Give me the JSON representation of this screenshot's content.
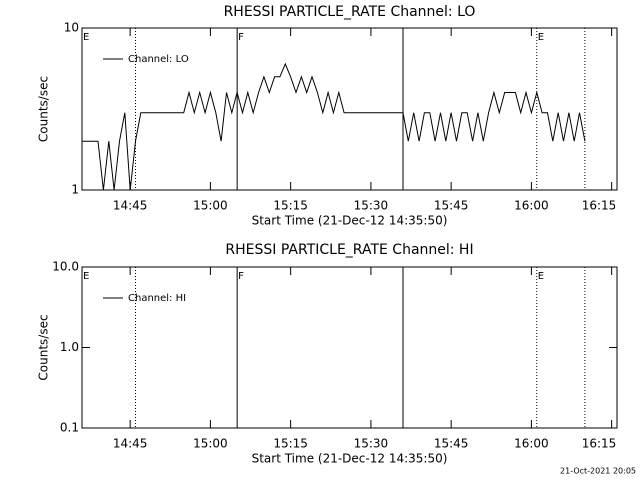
{
  "chart_data": [
    {
      "type": "line",
      "title": "RHESSI PARTICLE_RATE Channel: LO",
      "ylabel": "Counts/sec",
      "xlabel": "Start Time (21-Dec-12 14:35:50)",
      "yscale": "log",
      "ylim": [
        1,
        10
      ],
      "yticks": [
        1,
        10
      ],
      "xlim": [
        "14:36",
        "16:16"
      ],
      "xticks": [
        "14:45",
        "15:00",
        "15:15",
        "15:30",
        "15:45",
        "16:00",
        "16:15"
      ],
      "x": [
        "14:36",
        "14:37",
        "14:38",
        "14:39",
        "14:40",
        "14:41",
        "14:42",
        "14:43",
        "14:44",
        "14:45",
        "14:46",
        "14:47",
        "14:48",
        "14:49",
        "14:50",
        "14:51",
        "14:52",
        "14:53",
        "14:54",
        "14:55",
        "14:56",
        "14:57",
        "14:58",
        "14:59",
        "15:00",
        "15:01",
        "15:02",
        "15:03",
        "15:04",
        "15:05",
        "15:06",
        "15:07",
        "15:08",
        "15:09",
        "15:10",
        "15:11",
        "15:12",
        "15:13",
        "15:14",
        "15:15",
        "15:16",
        "15:17",
        "15:18",
        "15:19",
        "15:20",
        "15:21",
        "15:22",
        "15:23",
        "15:24",
        "15:25",
        "15:26",
        "15:27",
        "15:28",
        "15:29",
        "15:30",
        "15:31",
        "15:32",
        "15:33",
        "15:34",
        "15:35",
        "15:36",
        "15:37",
        "15:38",
        "15:39",
        "15:40",
        "15:41",
        "15:42",
        "15:43",
        "15:44",
        "15:45",
        "15:46",
        "15:47",
        "15:48",
        "15:49",
        "15:50",
        "15:51",
        "15:52",
        "15:53",
        "15:54",
        "15:55",
        "15:56",
        "15:57",
        "15:58",
        "15:59",
        "16:00",
        "16:01",
        "16:02",
        "16:03",
        "16:04",
        "16:05",
        "16:06",
        "16:07",
        "16:08",
        "16:09",
        "16:10"
      ],
      "series": [
        {
          "name": "Channel: LO",
          "color": "#000000",
          "values": [
            2,
            2,
            2,
            2,
            1,
            2,
            1,
            2,
            3,
            1,
            2,
            3,
            3,
            3,
            3,
            3,
            3,
            3,
            3,
            3,
            4,
            3,
            4,
            3,
            4,
            3,
            2,
            4,
            3,
            4,
            3,
            4,
            3,
            4,
            5,
            4,
            5,
            5,
            6,
            5,
            4,
            5,
            4,
            5,
            4,
            3,
            4,
            3,
            4,
            3,
            3,
            3,
            3,
            3,
            3,
            3,
            3,
            3,
            3,
            3,
            3,
            2,
            3,
            2,
            3,
            3,
            2,
            3,
            2,
            3,
            2,
            3,
            3,
            2,
            3,
            2,
            3,
            4,
            3,
            4,
            4,
            4,
            3,
            4,
            3,
            4,
            3,
            3,
            2,
            3,
            2,
            3,
            2,
            3,
            2
          ]
        }
      ],
      "vlines": [
        {
          "x": "14:46",
          "style": "dotted"
        },
        {
          "x": "15:05",
          "style": "solid"
        },
        {
          "x": "15:36",
          "style": "solid"
        },
        {
          "x": "16:01",
          "style": "dotted"
        },
        {
          "x": "16:10",
          "style": "dotted"
        }
      ],
      "annotations": [
        {
          "text": "E",
          "x": "14:36"
        },
        {
          "text": "F",
          "x": "15:05"
        },
        {
          "text": "E",
          "x": "16:01"
        }
      ]
    },
    {
      "type": "line",
      "title": "RHESSI PARTICLE_RATE Channel: HI",
      "ylabel": "Counts/sec",
      "xlabel": "Start Time (21-Dec-12 14:35:50)",
      "yscale": "log",
      "ylim": [
        0.1,
        10
      ],
      "yticks": [
        0.1,
        {
          "value": 1,
          "label": "1.0"
        },
        {
          "value": 10,
          "label": "10.0"
        }
      ],
      "xlim": [
        "14:36",
        "16:16"
      ],
      "xticks": [
        "14:45",
        "15:00",
        "15:15",
        "15:30",
        "15:45",
        "16:00",
        "16:15"
      ],
      "x": [],
      "series": [
        {
          "name": "Channel: HI",
          "color": "#000000",
          "values": []
        }
      ],
      "vlines": [
        {
          "x": "14:46",
          "style": "dotted"
        },
        {
          "x": "15:05",
          "style": "solid"
        },
        {
          "x": "15:36",
          "style": "solid"
        },
        {
          "x": "16:01",
          "style": "dotted"
        },
        {
          "x": "16:10",
          "style": "dotted"
        }
      ],
      "annotations": [
        {
          "text": "E",
          "x": "14:36"
        },
        {
          "text": "F",
          "x": "15:05"
        },
        {
          "text": "E",
          "x": "16:01"
        }
      ]
    }
  ],
  "footer": "21-Oct-2021 20:05"
}
